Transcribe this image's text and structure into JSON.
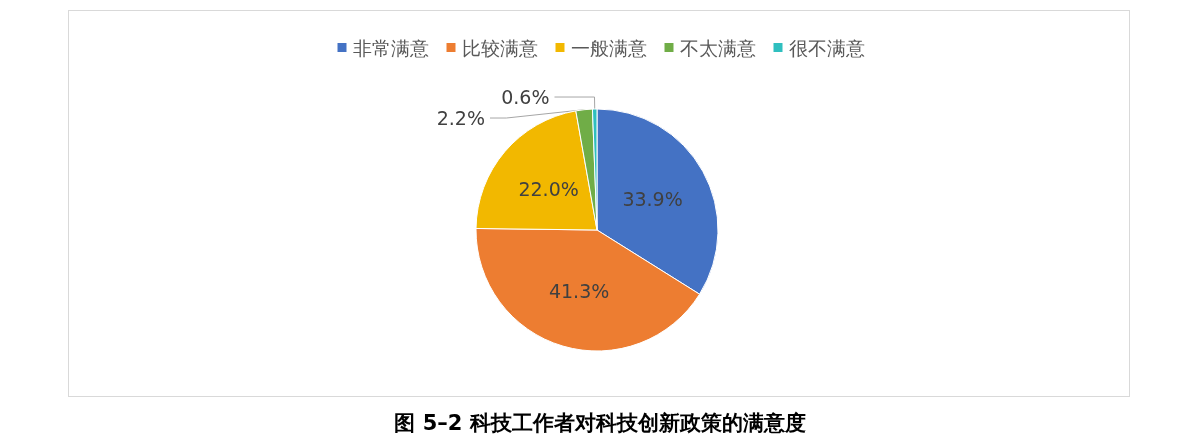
{
  "chart_data": {
    "type": "pie",
    "title": "图 5–2 科技工作者对科技创新政策的满意度",
    "categories": [
      "非常满意",
      "比较满意",
      "一般满意",
      "不太满意",
      "很不满意"
    ],
    "values": [
      33.9,
      41.3,
      22.0,
      2.2,
      0.6
    ],
    "colors": [
      "#4472c4",
      "#ed7d31",
      "#f2b800",
      "#70ad47",
      "#2fbfbf"
    ],
    "value_labels": [
      "33.9%",
      "41.3%",
      "22.0%",
      "2.2%",
      "0.6%"
    ],
    "legend": "top"
  }
}
